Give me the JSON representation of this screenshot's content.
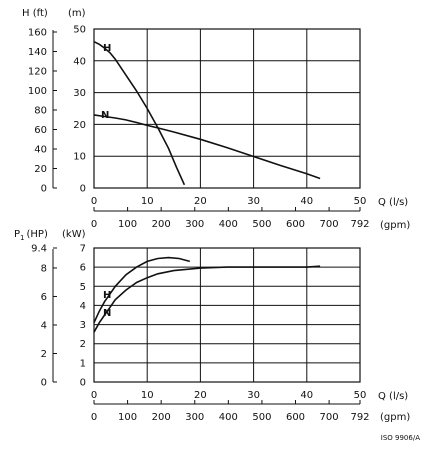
{
  "chart_data": [
    {
      "type": "line",
      "panel": "head",
      "left_axis": {
        "label": "H (ft)",
        "ticks": [
          "0",
          "20",
          "40",
          "60",
          "80",
          "100",
          "120",
          "140",
          "160"
        ]
      },
      "right_axis": {
        "label": "(m)",
        "ticks": [
          "0",
          "10",
          "20",
          "30",
          "40",
          "50"
        ]
      },
      "ylim": [
        0,
        50
      ],
      "xlim": [
        0,
        50
      ],
      "grid": true,
      "series": [
        {
          "name": "H",
          "x": [
            0,
            1,
            2,
            3,
            4,
            6,
            8,
            10,
            12,
            14,
            15.5,
            17
          ],
          "y": [
            46,
            45.2,
            44,
            42.5,
            40.5,
            35.5,
            30.5,
            25,
            19,
            12.5,
            6.5,
            1
          ]
        },
        {
          "name": "N",
          "x": [
            0,
            2,
            4,
            6,
            8,
            10,
            12,
            15,
            20,
            25,
            30,
            35,
            40,
            42.5
          ],
          "y": [
            23,
            22.5,
            22,
            21.4,
            20.6,
            19.7,
            18.9,
            17.6,
            15.3,
            12.7,
            9.9,
            7.1,
            4.5,
            3
          ]
        }
      ]
    },
    {
      "type": "line",
      "panel": "power",
      "left_axis": {
        "label_main": "P",
        "label_sub": "1",
        "label_unit": "(HP)",
        "ticks": [
          "0",
          "2",
          "4",
          "6",
          "8",
          "9.4"
        ]
      },
      "right_axis": {
        "label": "(kW)",
        "ticks": [
          "0",
          "1",
          "2",
          "3",
          "4",
          "5",
          "6",
          "7"
        ]
      },
      "ylim": [
        0,
        7
      ],
      "xlim": [
        0,
        50
      ],
      "grid": true,
      "series": [
        {
          "name": "H",
          "x": [
            0,
            1,
            2,
            3,
            4,
            6,
            8,
            10,
            12,
            14,
            16,
            18
          ],
          "y": [
            3.1,
            3.7,
            4.2,
            4.6,
            5,
            5.6,
            6,
            6.3,
            6.45,
            6.5,
            6.45,
            6.3
          ]
        },
        {
          "name": "N",
          "x": [
            0,
            1,
            2,
            3,
            4,
            6,
            8,
            10,
            12,
            15,
            20,
            25,
            30,
            35,
            40,
            42.5
          ],
          "y": [
            2.6,
            3.1,
            3.5,
            3.9,
            4.3,
            4.8,
            5.2,
            5.45,
            5.65,
            5.82,
            5.95,
            6,
            6,
            6,
            6,
            6.05
          ]
        }
      ]
    }
  ],
  "x_axes": {
    "flow_label": "Q (l/s)",
    "flow_ticks": [
      "0",
      "10",
      "20",
      "30",
      "40",
      "50"
    ],
    "gpm_label": "(gpm)",
    "gpm_ticks": [
      "0",
      "100",
      "200",
      "300",
      "400",
      "500",
      "600",
      "700",
      "792"
    ]
  },
  "figure_id": "ISO 9906/A"
}
